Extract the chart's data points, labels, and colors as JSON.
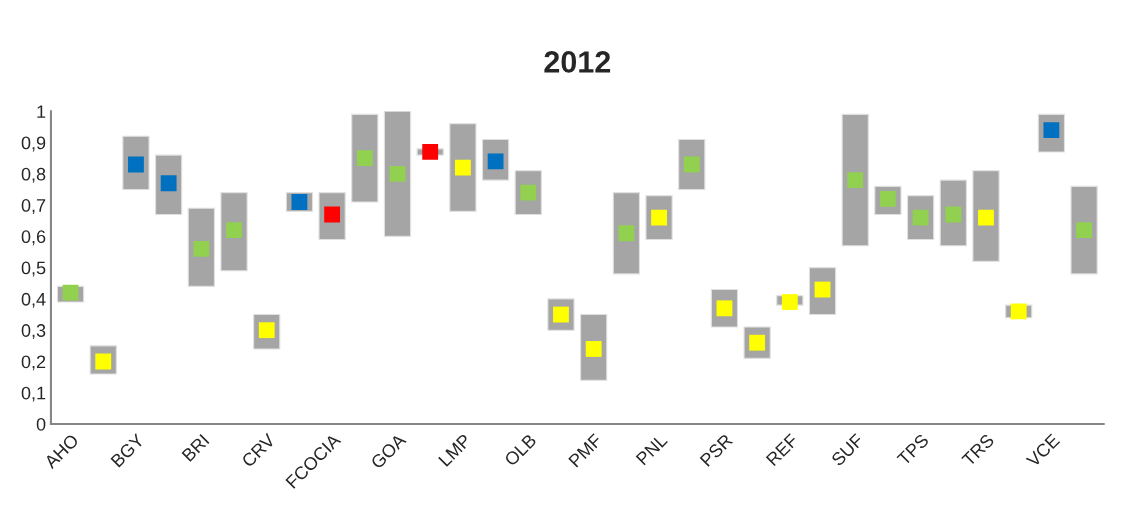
{
  "chart_data": {
    "type": "bar",
    "title": "2012",
    "categories": [
      "AHO",
      null,
      "BGY",
      null,
      "BRI",
      null,
      "CRV",
      null,
      "FCOCIA",
      null,
      "GOA",
      null,
      "LMP",
      null,
      "OLB",
      null,
      "PMF",
      null,
      "PNL",
      null,
      "PSR",
      null,
      "REF",
      null,
      "SUF",
      null,
      "TPS",
      null,
      "TRS",
      null,
      "VCE",
      null
    ],
    "series": [
      {
        "color": "#a5a5a5",
        "base": [
          0.39,
          0.16,
          0.75,
          0.67,
          0.44,
          0.49,
          0.24,
          0.68,
          0.59,
          0.71,
          0.6,
          0.86,
          0.68,
          0.78,
          0.67,
          0.3,
          0.14,
          0.48,
          0.59,
          0.75,
          0.31,
          0.21,
          0.38,
          0.35,
          0.57,
          0.67,
          0.59,
          0.57,
          0.52,
          0.34,
          0.87,
          0.48
        ],
        "values": [
          0.05,
          0.09,
          0.17,
          0.19,
          0.25,
          0.25,
          0.11,
          0.06,
          0.15,
          0.28,
          0.4,
          0.02,
          0.28,
          0.13,
          0.14,
          0.1,
          0.21,
          0.26,
          0.14,
          0.16,
          0.12,
          0.1,
          0.03,
          0.15,
          0.42,
          0.09,
          0.14,
          0.21,
          0.29,
          0.04,
          0.12,
          0.28
        ]
      },
      {
        "type": "scatter",
        "marker": "square",
        "colors": [
          "#92d050",
          "#ffff00",
          "#0070c0",
          "#0070c0",
          "#92d050",
          "#92d050",
          "#ffff00",
          "#0070c0",
          "#ff0000",
          "#92d050",
          "#92d050",
          "#ff0000",
          "#ffff00",
          "#0070c0",
          "#92d050",
          "#ffff00",
          "#ffff00",
          "#92d050",
          "#ffff00",
          "#92d050",
          "#ffff00",
          "#ffff00",
          "#ffff00",
          "#ffff00",
          "#92d050",
          "#92d050",
          "#92d050",
          "#92d050",
          "#ffff00",
          "#ffff00",
          "#0070c0",
          "#92d050"
        ],
        "values": [
          0.42,
          0.2,
          0.83,
          0.77,
          0.56,
          0.62,
          0.3,
          0.71,
          0.67,
          0.85,
          0.8,
          0.87,
          0.82,
          0.84,
          0.74,
          0.35,
          0.24,
          0.61,
          0.66,
          0.83,
          0.37,
          0.26,
          0.39,
          0.43,
          0.78,
          0.72,
          0.66,
          0.67,
          0.66,
          0.36,
          0.94,
          0.62
        ]
      }
    ],
    "ylim": [
      0,
      1
    ],
    "yticks": [
      0,
      {
        "value": 0.1,
        "label": "0,1"
      },
      {
        "value": 0.2,
        "label": "0,2"
      },
      {
        "value": 0.3,
        "label": "0,3"
      },
      {
        "value": 0.4,
        "label": "0,4"
      },
      {
        "value": 0.5,
        "label": "0,5"
      },
      {
        "value": 0.6,
        "label": "0,6"
      },
      {
        "value": 0.7,
        "label": "0,7"
      },
      {
        "value": 0.8,
        "label": "0,8"
      },
      {
        "value": 0.9,
        "label": "0,9"
      },
      1
    ],
    "grid": false,
    "legend": false
  }
}
